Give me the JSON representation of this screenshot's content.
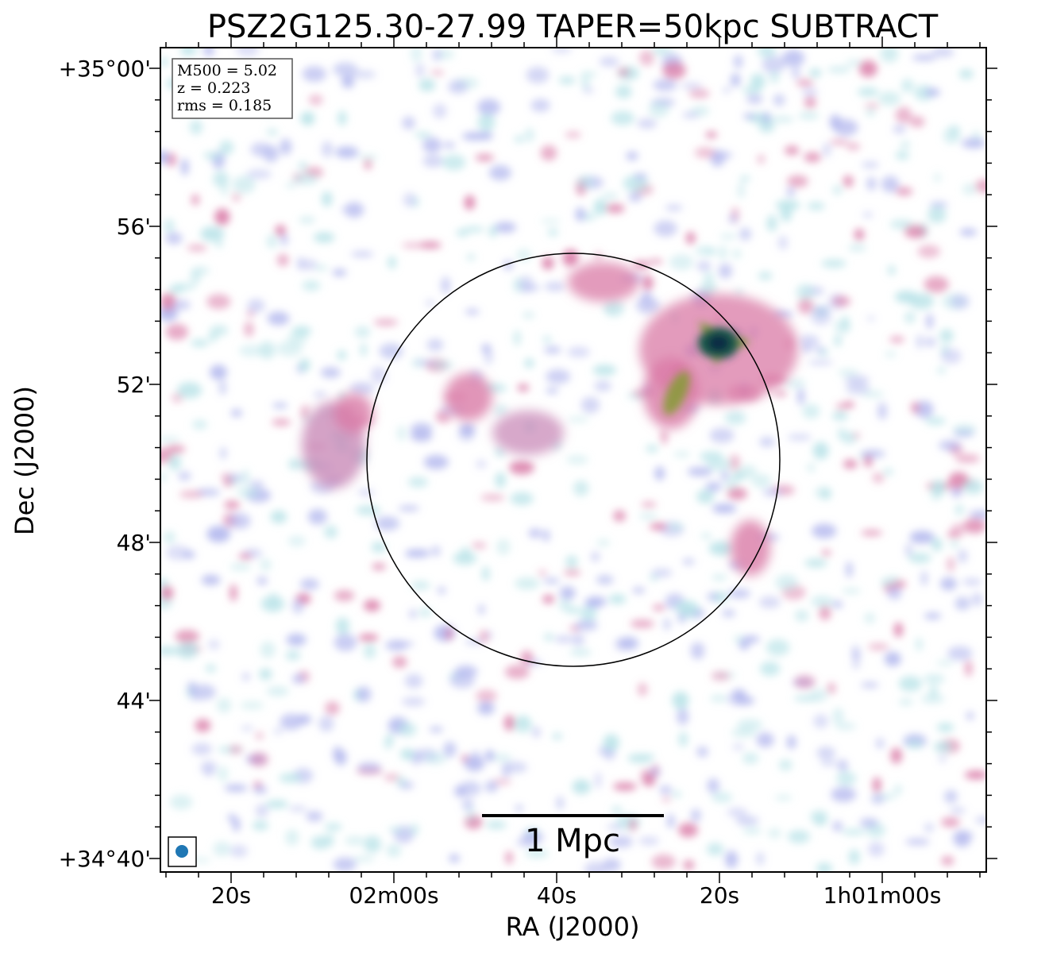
{
  "title": "PSZ2G125.30-27.99 TAPER=50kpc SUBTRACT",
  "info_box": {
    "m500": "M500 = 5.02",
    "z": "z = 0.223",
    "rms": "rms = 0.185"
  },
  "scale_bar": {
    "label": "1 Mpc"
  },
  "axes": {
    "xlabel": "RA (J2000)",
    "ylabel": "Dec (J2000)",
    "x_ticks": [
      "20s",
      "02m00s",
      "40s",
      "20s",
      "1h01m00s"
    ],
    "y_ticks": [
      "+35°00'",
      "56'",
      "52'",
      "48'",
      "44'",
      "+34°40'"
    ]
  },
  "colors": {
    "faint_emission": "#b9e3e8",
    "low_emission": "#b3b8ee",
    "mid_emission": "#d97aa6",
    "high_emission": "#7a9a3a",
    "peak_emission": "#0b2a45",
    "beam": "#1f77b4"
  }
}
